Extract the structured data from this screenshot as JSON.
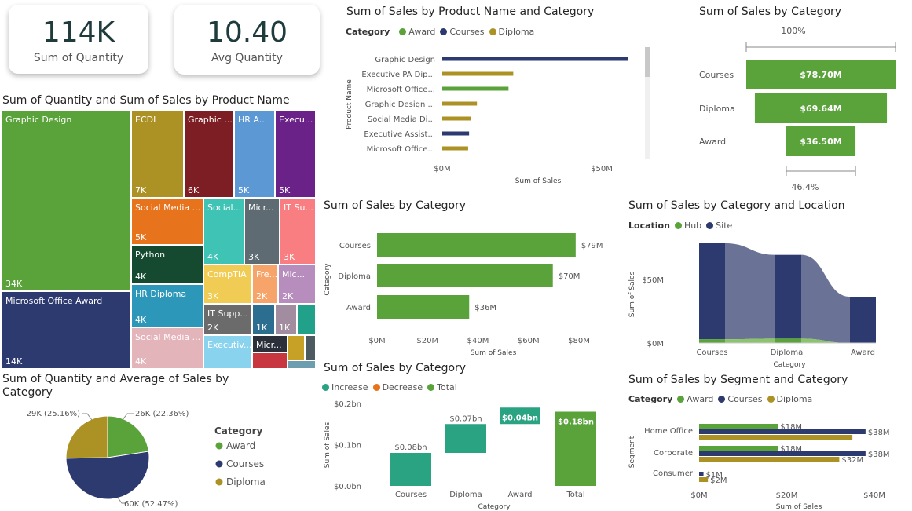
{
  "colors": {
    "award": "#5aa23a",
    "courses": "#2d3a6f",
    "diploma": "#ac9224",
    "increase": "#2aa383",
    "decrease": "#e8731d",
    "total": "#5aa23a",
    "hub": "#5aa23a",
    "site": "#2d3a6f"
  },
  "kpis": [
    {
      "value": "114K",
      "label": "Sum of Quantity"
    },
    {
      "value": "10.40",
      "label": "Avg Quantity"
    }
  ],
  "charts": {
    "treemap": {
      "title": "Sum of Quantity and Sum of Sales by Product Name",
      "cells": [
        {
          "name": "Graphic Design",
          "q": "34K",
          "color": "#5aa23a"
        },
        {
          "name": "Microsoft Office Award",
          "q": "14K",
          "color": "#2d3a6f"
        },
        {
          "name": "ECDL",
          "q": "7K",
          "color": "#ac9224"
        },
        {
          "name": "Graphic ...",
          "q": "6K",
          "color": "#7d1e24"
        },
        {
          "name": "HR A...",
          "q": "5K",
          "color": "#5c98d4"
        },
        {
          "name": "Execu...",
          "q": "5K",
          "color": "#6a2288"
        },
        {
          "name": "Social Media ...",
          "q": "5K",
          "color": "#e8731d"
        },
        {
          "name": "Python",
          "q": "4K",
          "color": "#154a31"
        },
        {
          "name": "HR Diploma",
          "q": "4K",
          "color": "#2c97b8"
        },
        {
          "name": "Social Media ...",
          "q": "4K",
          "color": "#e4b4bb"
        },
        {
          "name": "Social...",
          "q": "4K",
          "color": "#3ec3b5"
        },
        {
          "name": "Micr...",
          "q": "3K",
          "color": "#5e6b72"
        },
        {
          "name": "IT Su...",
          "q": "3K",
          "color": "#f97e81"
        },
        {
          "name": "CompTIA",
          "q": "3K",
          "color": "#f1cc54"
        },
        {
          "name": "Fre...",
          "q": "2K",
          "color": "#f7a46a"
        },
        {
          "name": "Mic...",
          "q": "2K",
          "color": "#b68dbd"
        },
        {
          "name": "IT Supp...",
          "q": "2K",
          "color": "#6b6b6b"
        },
        {
          "name": "",
          "q": "1K",
          "color": "#2c6e8f"
        },
        {
          "name": "",
          "q": "1K",
          "color": "#a18ca0"
        },
        {
          "name": "",
          "q": "",
          "color": "#21a18a"
        },
        {
          "name": "Executiv...",
          "q": "",
          "color": "#8ad3ee"
        },
        {
          "name": "Micr...",
          "q": "",
          "color": "#2a2f3a"
        },
        {
          "name": "",
          "q": "",
          "color": "#c6a126"
        },
        {
          "name": "",
          "q": "",
          "color": "#4d5a60"
        },
        {
          "name": "",
          "q": "",
          "color": "#c8363f"
        },
        {
          "name": "",
          "q": "",
          "color": "#6d9eb0"
        }
      ]
    },
    "pie": {
      "title": "Sum of Quantity and Average of Sales by Category",
      "legend_title": "Category",
      "labels": {
        "award": "26K (22.36%)",
        "diploma": "29K (25.16%)",
        "courses": "60K (52.47%)"
      }
    },
    "product_bar": {
      "title": "Sum of Sales by Product Name and Category",
      "ylabel": "Product Name",
      "xlabel": "Sum of Sales"
    },
    "funnel": {
      "title": "Sum of Sales by Category",
      "top_pct": "100%",
      "bottom_pct": "46.4%"
    },
    "cat_bar": {
      "title": "Sum of Sales by Category",
      "ylabel": "Category",
      "xlabel": "Sum of Sales"
    },
    "ribbon": {
      "title": "Sum of Sales by Category and Location",
      "legend_title": "Location",
      "ylabel": "Sum of Sales",
      "xlabel": "Category"
    },
    "waterfall": {
      "title": "Sum of Sales by Category",
      "ylabel": "Sum of Sales",
      "xlabel": "Category"
    },
    "segment": {
      "title": "Sum of Sales by Segment and Category",
      "legend_title": "Category",
      "ylabel": "Segment",
      "xlabel": "Sum of Sales"
    }
  },
  "chart_data": [
    {
      "type": "treemap",
      "title": "Sum of Quantity and Sum of Sales by Product Name",
      "categories": [
        "Graphic Design",
        "Microsoft Office Award",
        "ECDL",
        "Graphic ...",
        "HR A...",
        "Execu...",
        "Social Media ...",
        "Python",
        "HR Diploma",
        "Social Media ...",
        "Social...",
        "Micr...",
        "IT Su...",
        "CompTIA",
        "Fre...",
        "Mic...",
        "IT Supp..."
      ],
      "values": [
        "34K",
        "14K",
        "7K",
        "6K",
        "5K",
        "5K",
        "5K",
        "4K",
        "4K",
        "4K",
        "4K",
        "3K",
        "3K",
        "3K",
        "2K",
        "2K",
        "2K"
      ]
    },
    {
      "type": "bar",
      "orientation": "horizontal",
      "title": "Sum of Sales by Product Name and Category",
      "categories": [
        "Graphic Design",
        "Executive PA Dip...",
        "Microsoft Office...",
        "Graphic Design ...",
        "Social Media Di...",
        "Executive Assist...",
        "Microsoft Office..."
      ],
      "series": [
        {
          "name": "Award",
          "values": [
            null,
            null,
            21000000,
            null,
            null,
            null,
            null
          ]
        },
        {
          "name": "Courses",
          "values": [
            59000000,
            null,
            null,
            null,
            null,
            8500000,
            null
          ]
        },
        {
          "name": "Diploma",
          "values": [
            null,
            22500000,
            null,
            11000000,
            9000000,
            null,
            8200000
          ]
        }
      ],
      "xticks": [
        "$0M",
        "$50M"
      ],
      "xlabel": "Sum of Sales",
      "ylabel": "Product Name",
      "xlim": [
        0,
        60000000
      ]
    },
    {
      "type": "funnel",
      "title": "Sum of Sales by Category",
      "categories": [
        "Courses",
        "Diploma",
        "Award"
      ],
      "values": [
        78700000,
        69640000,
        36500000
      ],
      "value_labels": [
        "$78.70M",
        "$69.64M",
        "$36.50M"
      ],
      "annotations": [
        "100%",
        "46.4%"
      ]
    },
    {
      "type": "bar",
      "orientation": "horizontal",
      "title": "Sum of Sales by Category",
      "categories": [
        "Courses",
        "Diploma",
        "Award"
      ],
      "values": [
        78700000,
        69640000,
        36500000
      ],
      "value_labels": [
        "$79M",
        "$70M",
        "$36M"
      ],
      "xticks": [
        "$0M",
        "$20M",
        "$40M",
        "$60M",
        "$80M"
      ],
      "xlabel": "Sum of Sales",
      "ylabel": "Category",
      "xlim": [
        0,
        80000000
      ]
    },
    {
      "type": "area",
      "subtype": "ribbon",
      "title": "Sum of Sales by Category and Location",
      "categories": [
        "Courses",
        "Diploma",
        "Award"
      ],
      "series": [
        {
          "name": "Hub",
          "values": [
            3000000,
            3500000,
            0
          ]
        },
        {
          "name": "Site",
          "values": [
            75700000,
            66100000,
            36500000
          ]
        }
      ],
      "yticks": [
        "$0M",
        "$50M"
      ],
      "xlabel": "Category",
      "ylabel": "Sum of Sales"
    },
    {
      "type": "waterfall",
      "title": "Sum of Sales by Category",
      "categories": [
        "Courses",
        "Diploma",
        "Award",
        "Total"
      ],
      "values": [
        0.08,
        0.07,
        0.04,
        0.18
      ],
      "value_labels": [
        "$0.08bn",
        "$0.07bn",
        "$0.04bn",
        "$0.18bn"
      ],
      "legend": [
        "Increase",
        "Decrease",
        "Total"
      ],
      "yticks": [
        "$0.0bn",
        "$0.1bn",
        "$0.2bn"
      ],
      "ylim": [
        0,
        0.2
      ],
      "xlabel": "Category",
      "ylabel": "Sum of Sales"
    },
    {
      "type": "bar",
      "orientation": "horizontal",
      "title": "Sum of Sales by Segment and Category",
      "categories": [
        "Home Office",
        "Corporate",
        "Consumer"
      ],
      "series": [
        {
          "name": "Award",
          "values": [
            18000000,
            18000000,
            0
          ]
        },
        {
          "name": "Courses",
          "values": [
            38000000,
            38000000,
            1000000
          ]
        },
        {
          "name": "Diploma",
          "values": [
            35000000,
            32000000,
            2000000
          ]
        }
      ],
      "value_labels": {
        "Award": [
          "$18M",
          "$18M",
          ""
        ],
        "Courses": [
          "$38M",
          "$38M",
          "$1M"
        ],
        "Diploma": [
          "",
          "$32M",
          "$2M"
        ]
      },
      "xticks": [
        "$0M",
        "$20M",
        "$40M"
      ],
      "xlim": [
        0,
        40000000
      ],
      "xlabel": "Sum of Sales",
      "ylabel": "Segment"
    },
    {
      "type": "pie",
      "title": "Sum of Quantity and Average of Sales by Category",
      "categories": [
        "Award",
        "Courses",
        "Diploma"
      ],
      "values": [
        26000,
        60000,
        29000
      ],
      "value_labels": [
        "26K (22.36%)",
        "60K (52.47%)",
        "29K (25.16%)"
      ]
    }
  ]
}
